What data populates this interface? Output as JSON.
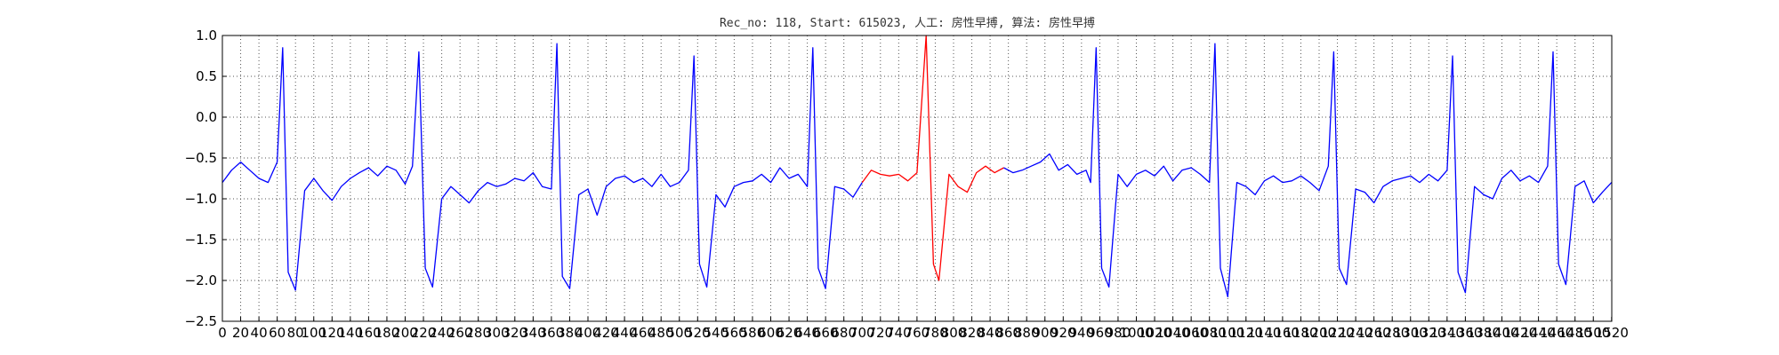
{
  "chart_data": {
    "type": "line",
    "title": "Rec_no: 118, Start: 615023, 人工: 房性早搏, 算法: 房性早搏",
    "xlabel": "",
    "ylabel": "",
    "xlim": [
      0,
      1520
    ],
    "ylim": [
      -2.5,
      1.0
    ],
    "grid": true,
    "xticks": [
      0,
      20,
      40,
      60,
      80,
      100,
      120,
      140,
      160,
      180,
      200,
      220,
      240,
      260,
      280,
      300,
      320,
      340,
      360,
      380,
      400,
      420,
      440,
      460,
      480,
      500,
      520,
      540,
      560,
      580,
      600,
      620,
      640,
      660,
      680,
      700,
      720,
      740,
      760,
      780,
      800,
      820,
      840,
      860,
      880,
      900,
      920,
      940,
      960,
      980,
      1000,
      1020,
      1040,
      1060,
      1080,
      1100,
      1120,
      1140,
      1160,
      1180,
      1200,
      1220,
      1240,
      1260,
      1280,
      1300,
      1320,
      1340,
      1360,
      1380,
      1400,
      1420,
      1440,
      1460,
      1480,
      1500,
      1520
    ],
    "xtick_labels": [
      "0",
      "20",
      "40",
      "60",
      "80",
      "100",
      "120",
      "140",
      "160",
      "180",
      "200",
      "220",
      "240",
      "260",
      "280",
      "300",
      "320",
      "340",
      "360",
      "380",
      "400",
      "420",
      "440",
      "460",
      "480",
      "500",
      "520",
      "540",
      "560",
      "580",
      "600",
      "620",
      "640",
      "660",
      "680",
      "700",
      "720",
      "740",
      "760",
      "780",
      "800",
      "820",
      "840",
      "860",
      "880",
      "900",
      "920",
      "940",
      "960",
      "980",
      "1000",
      "1020",
      "1040",
      "1060",
      "1080",
      "1100",
      "1120",
      "1140",
      "1160",
      "1180",
      "1200",
      "1220",
      "1240",
      "1260",
      "1280",
      "1300",
      "1320",
      "1340",
      "1360",
      "1380",
      "1400",
      "1420",
      "1440",
      "1460",
      "1480",
      "1500",
      "1520"
    ],
    "yticks": [
      1.0,
      0.5,
      0.0,
      -0.5,
      -1.0,
      -1.5,
      -2.0,
      -2.5
    ],
    "ytick_labels": [
      "1.0",
      "0.5",
      "0.0",
      "−0.5",
      "−1.0",
      "−1.5",
      "−2.0",
      "−2.5"
    ],
    "series": [
      {
        "color": "#0000ff",
        "points": [
          [
            0,
            -0.8
          ],
          [
            10,
            -0.65
          ],
          [
            20,
            -0.55
          ],
          [
            30,
            -0.65
          ],
          [
            40,
            -0.75
          ],
          [
            50,
            -0.8
          ],
          [
            60,
            -0.55
          ],
          [
            66,
            0.85
          ],
          [
            72,
            -1.9
          ],
          [
            80,
            -2.12
          ],
          [
            90,
            -0.9
          ],
          [
            100,
            -0.75
          ],
          [
            110,
            -0.9
          ],
          [
            120,
            -1.02
          ],
          [
            130,
            -0.85
          ],
          [
            140,
            -0.75
          ],
          [
            150,
            -0.68
          ],
          [
            160,
            -0.62
          ],
          [
            170,
            -0.72
          ],
          [
            180,
            -0.6
          ],
          [
            190,
            -0.65
          ],
          [
            200,
            -0.82
          ],
          [
            208,
            -0.6
          ],
          [
            215,
            0.8
          ],
          [
            222,
            -1.85
          ],
          [
            230,
            -2.08
          ],
          [
            240,
            -1.0
          ],
          [
            250,
            -0.85
          ],
          [
            260,
            -0.95
          ],
          [
            270,
            -1.05
          ],
          [
            280,
            -0.9
          ],
          [
            290,
            -0.8
          ],
          [
            300,
            -0.85
          ],
          [
            310,
            -0.82
          ],
          [
            320,
            -0.75
          ],
          [
            330,
            -0.78
          ],
          [
            340,
            -0.68
          ],
          [
            350,
            -0.85
          ],
          [
            360,
            -0.88
          ],
          [
            366,
            0.9
          ],
          [
            372,
            -1.95
          ],
          [
            380,
            -2.1
          ],
          [
            390,
            -0.95
          ],
          [
            400,
            -0.88
          ],
          [
            410,
            -1.2
          ],
          [
            420,
            -0.85
          ],
          [
            430,
            -0.75
          ],
          [
            440,
            -0.72
          ],
          [
            450,
            -0.8
          ],
          [
            460,
            -0.75
          ],
          [
            470,
            -0.85
          ],
          [
            480,
            -0.7
          ],
          [
            490,
            -0.85
          ],
          [
            500,
            -0.8
          ],
          [
            510,
            -0.65
          ],
          [
            516,
            0.75
          ],
          [
            522,
            -1.8
          ],
          [
            530,
            -2.08
          ],
          [
            540,
            -0.95
          ],
          [
            550,
            -1.1
          ],
          [
            560,
            -0.85
          ],
          [
            570,
            -0.8
          ],
          [
            580,
            -0.78
          ],
          [
            590,
            -0.7
          ],
          [
            600,
            -0.8
          ],
          [
            610,
            -0.62
          ],
          [
            620,
            -0.75
          ],
          [
            630,
            -0.7
          ],
          [
            640,
            -0.85
          ],
          [
            646,
            0.85
          ],
          [
            652,
            -1.85
          ],
          [
            660,
            -2.1
          ],
          [
            670,
            -0.85
          ],
          [
            680,
            -0.88
          ],
          [
            690,
            -0.98
          ],
          [
            700,
            -0.8
          ]
        ]
      },
      {
        "color": "#ff0000",
        "points": [
          [
            700,
            -0.8
          ],
          [
            710,
            -0.65
          ],
          [
            720,
            -0.7
          ],
          [
            730,
            -0.72
          ],
          [
            740,
            -0.7
          ],
          [
            750,
            -0.78
          ],
          [
            760,
            -0.68
          ],
          [
            770,
            1.0
          ],
          [
            778,
            -1.8
          ],
          [
            784,
            -2.0
          ],
          [
            795,
            -0.7
          ],
          [
            805,
            -0.85
          ],
          [
            815,
            -0.92
          ],
          [
            825,
            -0.68
          ],
          [
            835,
            -0.6
          ],
          [
            845,
            -0.68
          ],
          [
            855,
            -0.62
          ]
        ]
      },
      {
        "color": "#0000ff",
        "points": [
          [
            855,
            -0.62
          ],
          [
            865,
            -0.68
          ],
          [
            875,
            -0.65
          ],
          [
            885,
            -0.6
          ],
          [
            895,
            -0.55
          ],
          [
            905,
            -0.45
          ],
          [
            915,
            -0.65
          ],
          [
            925,
            -0.58
          ],
          [
            935,
            -0.7
          ],
          [
            945,
            -0.65
          ],
          [
            950,
            -0.8
          ],
          [
            956,
            0.85
          ],
          [
            962,
            -1.85
          ],
          [
            970,
            -2.08
          ],
          [
            980,
            -0.7
          ],
          [
            990,
            -0.85
          ],
          [
            1000,
            -0.7
          ],
          [
            1010,
            -0.65
          ],
          [
            1020,
            -0.72
          ],
          [
            1030,
            -0.6
          ],
          [
            1040,
            -0.78
          ],
          [
            1050,
            -0.65
          ],
          [
            1060,
            -0.62
          ],
          [
            1070,
            -0.7
          ],
          [
            1080,
            -0.8
          ],
          [
            1086,
            0.9
          ],
          [
            1092,
            -1.85
          ],
          [
            1100,
            -2.2
          ],
          [
            1110,
            -0.8
          ],
          [
            1120,
            -0.85
          ],
          [
            1130,
            -0.95
          ],
          [
            1140,
            -0.78
          ],
          [
            1150,
            -0.72
          ],
          [
            1160,
            -0.8
          ],
          [
            1170,
            -0.78
          ],
          [
            1180,
            -0.72
          ],
          [
            1190,
            -0.8
          ],
          [
            1200,
            -0.9
          ],
          [
            1210,
            -0.6
          ],
          [
            1216,
            0.8
          ],
          [
            1222,
            -1.85
          ],
          [
            1230,
            -2.05
          ],
          [
            1240,
            -0.88
          ],
          [
            1250,
            -0.92
          ],
          [
            1260,
            -1.05
          ],
          [
            1270,
            -0.85
          ],
          [
            1280,
            -0.78
          ],
          [
            1290,
            -0.75
          ],
          [
            1300,
            -0.72
          ],
          [
            1310,
            -0.8
          ],
          [
            1320,
            -0.7
          ],
          [
            1330,
            -0.78
          ],
          [
            1340,
            -0.65
          ],
          [
            1346,
            0.75
          ],
          [
            1352,
            -1.9
          ],
          [
            1360,
            -2.15
          ],
          [
            1370,
            -0.85
          ],
          [
            1380,
            -0.95
          ],
          [
            1390,
            -1.0
          ],
          [
            1400,
            -0.75
          ],
          [
            1410,
            -0.65
          ],
          [
            1420,
            -0.78
          ],
          [
            1430,
            -0.72
          ],
          [
            1440,
            -0.8
          ],
          [
            1450,
            -0.6
          ],
          [
            1456,
            0.8
          ],
          [
            1462,
            -1.8
          ],
          [
            1470,
            -2.05
          ],
          [
            1480,
            -0.85
          ],
          [
            1490,
            -0.78
          ],
          [
            1500,
            -1.05
          ],
          [
            1510,
            -0.92
          ],
          [
            1520,
            -0.8
          ]
        ]
      }
    ]
  }
}
